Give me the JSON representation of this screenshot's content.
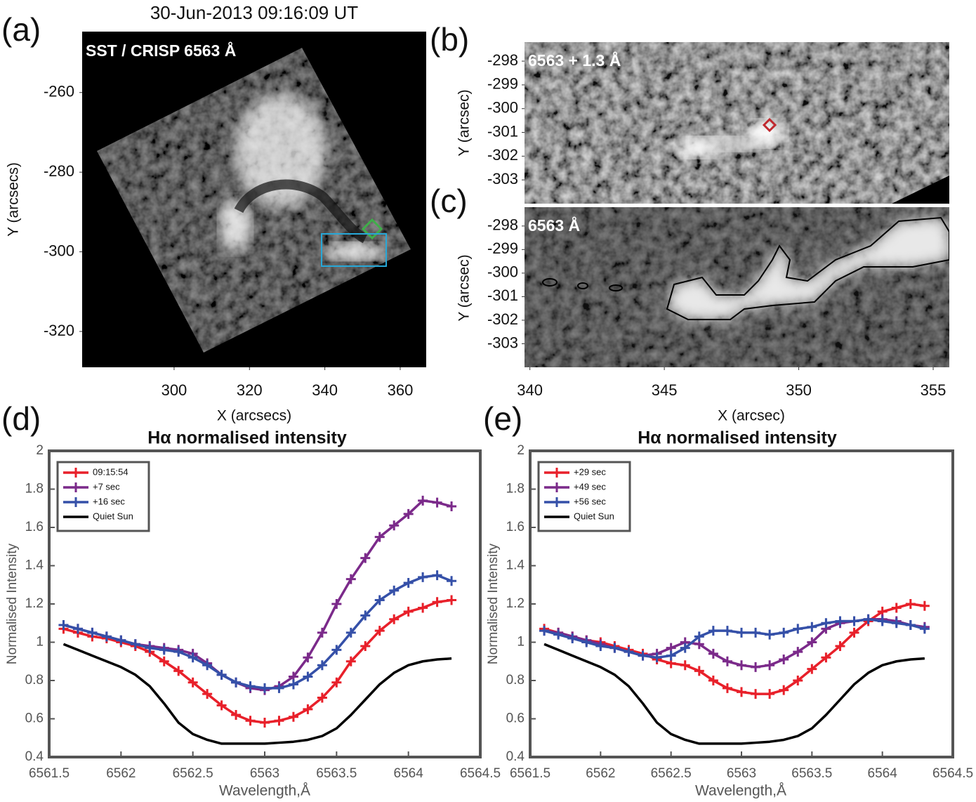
{
  "chart_data": [
    {
      "type": "image",
      "panel_label": "(a)",
      "title": "30-Jun-2013 09:16:09 UT",
      "label": "SST / CRISP 6563 Å",
      "xlabel": "X (arcsecs)",
      "ylabel": "Y (arcsecs)",
      "xlim": [
        275.6,
        366.9
      ],
      "ylim": [
        -329,
        -244.7
      ],
      "xticks": [
        300,
        320,
        340,
        360
      ],
      "yticks": [
        -260,
        -280,
        -300,
        -320
      ]
    },
    {
      "type": "image",
      "panel_label": "(b)",
      "label": "6563 + 1.3 Å",
      "ylabel": "Y (arcsec)",
      "xlim": [
        339.8,
        355.6
      ],
      "ylim": [
        -304,
        -297.2
      ],
      "yticks": [
        -298,
        -299,
        -300,
        -301,
        -302,
        -303
      ]
    },
    {
      "type": "image",
      "panel_label": "(c)",
      "label": "6563 Å",
      "xlabel": "X (arcsec)",
      "ylabel": "Y (arcsec)",
      "xlim": [
        339.8,
        355.6
      ],
      "ylim": [
        -304,
        -297.2
      ],
      "xticks": [
        340,
        345,
        350,
        355
      ],
      "yticks": [
        -298,
        -299,
        -300,
        -301,
        -302,
        -303
      ]
    },
    {
      "type": "line",
      "panel_label": "(d)",
      "title": "Hα normalised intensity",
      "xlabel": "Wavelength,Å",
      "ylabel": "Normalised Intensity",
      "x": [
        6561.6,
        6561.7,
        6561.8,
        6561.9,
        6562.0,
        6562.1,
        6562.2,
        6562.3,
        6562.4,
        6562.5,
        6562.6,
        6562.7,
        6562.8,
        6562.9,
        6563.0,
        6563.1,
        6563.2,
        6563.3,
        6563.4,
        6563.5,
        6563.6,
        6563.7,
        6563.8,
        6563.9,
        6564.0,
        6564.1,
        6564.2,
        6564.3
      ],
      "series": [
        {
          "name": "09:15:54",
          "color": "#e8202a",
          "marker": "+",
          "values": [
            1.07,
            1.05,
            1.03,
            1.02,
            1.0,
            0.98,
            0.95,
            0.9,
            0.85,
            0.79,
            0.73,
            0.67,
            0.62,
            0.59,
            0.58,
            0.59,
            0.61,
            0.65,
            0.71,
            0.79,
            0.9,
            0.98,
            1.06,
            1.12,
            1.16,
            1.18,
            1.21,
            1.22
          ]
        },
        {
          "name": "+7 sec",
          "color": "#7b2a8a",
          "marker": "+",
          "values": [
            1.09,
            1.07,
            1.05,
            1.03,
            1.01,
            0.99,
            0.98,
            0.97,
            0.96,
            0.94,
            0.89,
            0.83,
            0.79,
            0.76,
            0.75,
            0.77,
            0.82,
            0.92,
            1.05,
            1.2,
            1.33,
            1.44,
            1.55,
            1.61,
            1.67,
            1.74,
            1.73,
            1.71
          ]
        },
        {
          "name": "+16 sec",
          "color": "#3550a8",
          "marker": "+",
          "values": [
            1.09,
            1.07,
            1.05,
            1.03,
            1.01,
            0.99,
            0.97,
            0.96,
            0.95,
            0.92,
            0.88,
            0.83,
            0.79,
            0.77,
            0.76,
            0.76,
            0.78,
            0.82,
            0.88,
            0.96,
            1.05,
            1.14,
            1.22,
            1.27,
            1.31,
            1.34,
            1.35,
            1.32
          ]
        },
        {
          "name": "Quiet Sun",
          "color": "#000000",
          "values": [
            0.99,
            0.96,
            0.93,
            0.9,
            0.87,
            0.83,
            0.77,
            0.68,
            0.58,
            0.52,
            0.49,
            0.47,
            0.47,
            0.47,
            0.47,
            0.475,
            0.48,
            0.49,
            0.51,
            0.55,
            0.62,
            0.7,
            0.78,
            0.84,
            0.88,
            0.9,
            0.91,
            0.915
          ]
        }
      ],
      "xlim": [
        6561.5,
        6564.5
      ],
      "ylim": [
        0.4,
        2
      ],
      "xticks": [
        6561.5,
        6562,
        6562.5,
        6563,
        6563.5,
        6564,
        6564.5
      ],
      "yticks": [
        0.4,
        0.6,
        0.8,
        1,
        1.2,
        1.4,
        1.6,
        1.8,
        2
      ],
      "legend": "upper left"
    },
    {
      "type": "line",
      "panel_label": "(e)",
      "title": "Hα normalised intensity",
      "xlabel": "Wavelength,Å",
      "ylabel": "Normalised Intensity",
      "x": [
        6561.6,
        6561.7,
        6561.8,
        6561.9,
        6562.0,
        6562.1,
        6562.2,
        6562.3,
        6562.4,
        6562.5,
        6562.6,
        6562.7,
        6562.8,
        6562.9,
        6563.0,
        6563.1,
        6563.2,
        6563.3,
        6563.4,
        6563.5,
        6563.6,
        6563.7,
        6563.8,
        6563.9,
        6564.0,
        6564.1,
        6564.2,
        6564.3
      ],
      "series": [
        {
          "name": "+29 sec",
          "color": "#e8202a",
          "marker": "+",
          "values": [
            1.07,
            1.05,
            1.03,
            1.01,
            1.0,
            0.98,
            0.96,
            0.94,
            0.91,
            0.89,
            0.88,
            0.85,
            0.8,
            0.76,
            0.74,
            0.73,
            0.73,
            0.75,
            0.8,
            0.86,
            0.92,
            0.98,
            1.05,
            1.11,
            1.16,
            1.18,
            1.2,
            1.19
          ]
        },
        {
          "name": "+49 sec",
          "color": "#7b2a8a",
          "marker": "+",
          "values": [
            1.06,
            1.05,
            1.03,
            1.01,
            0.99,
            0.97,
            0.95,
            0.93,
            0.94,
            0.97,
            1.0,
            0.99,
            0.94,
            0.9,
            0.88,
            0.87,
            0.88,
            0.91,
            0.95,
            1.0,
            1.07,
            1.1,
            1.11,
            1.12,
            1.12,
            1.11,
            1.09,
            1.08
          ]
        },
        {
          "name": "+56 sec",
          "color": "#3550a8",
          "marker": "+",
          "values": [
            1.06,
            1.04,
            1.02,
            1.0,
            0.98,
            0.97,
            0.95,
            0.93,
            0.92,
            0.93,
            0.97,
            1.03,
            1.06,
            1.06,
            1.05,
            1.05,
            1.04,
            1.05,
            1.07,
            1.08,
            1.1,
            1.11,
            1.11,
            1.12,
            1.11,
            1.1,
            1.09,
            1.07
          ]
        },
        {
          "name": "Quiet Sun",
          "color": "#000000",
          "values": [
            0.99,
            0.96,
            0.93,
            0.9,
            0.87,
            0.83,
            0.77,
            0.68,
            0.58,
            0.52,
            0.49,
            0.47,
            0.47,
            0.47,
            0.47,
            0.475,
            0.48,
            0.49,
            0.51,
            0.55,
            0.62,
            0.7,
            0.78,
            0.84,
            0.88,
            0.9,
            0.91,
            0.915
          ]
        }
      ],
      "xlim": [
        6561.5,
        6564.5
      ],
      "ylim": [
        0.4,
        2
      ],
      "xticks": [
        6561.5,
        6562,
        6562.5,
        6563,
        6563.5,
        6564,
        6564.5
      ],
      "yticks": [
        0.4,
        0.6,
        0.8,
        1,
        1.2,
        1.4,
        1.6,
        1.8,
        2
      ],
      "legend": "upper left"
    }
  ]
}
